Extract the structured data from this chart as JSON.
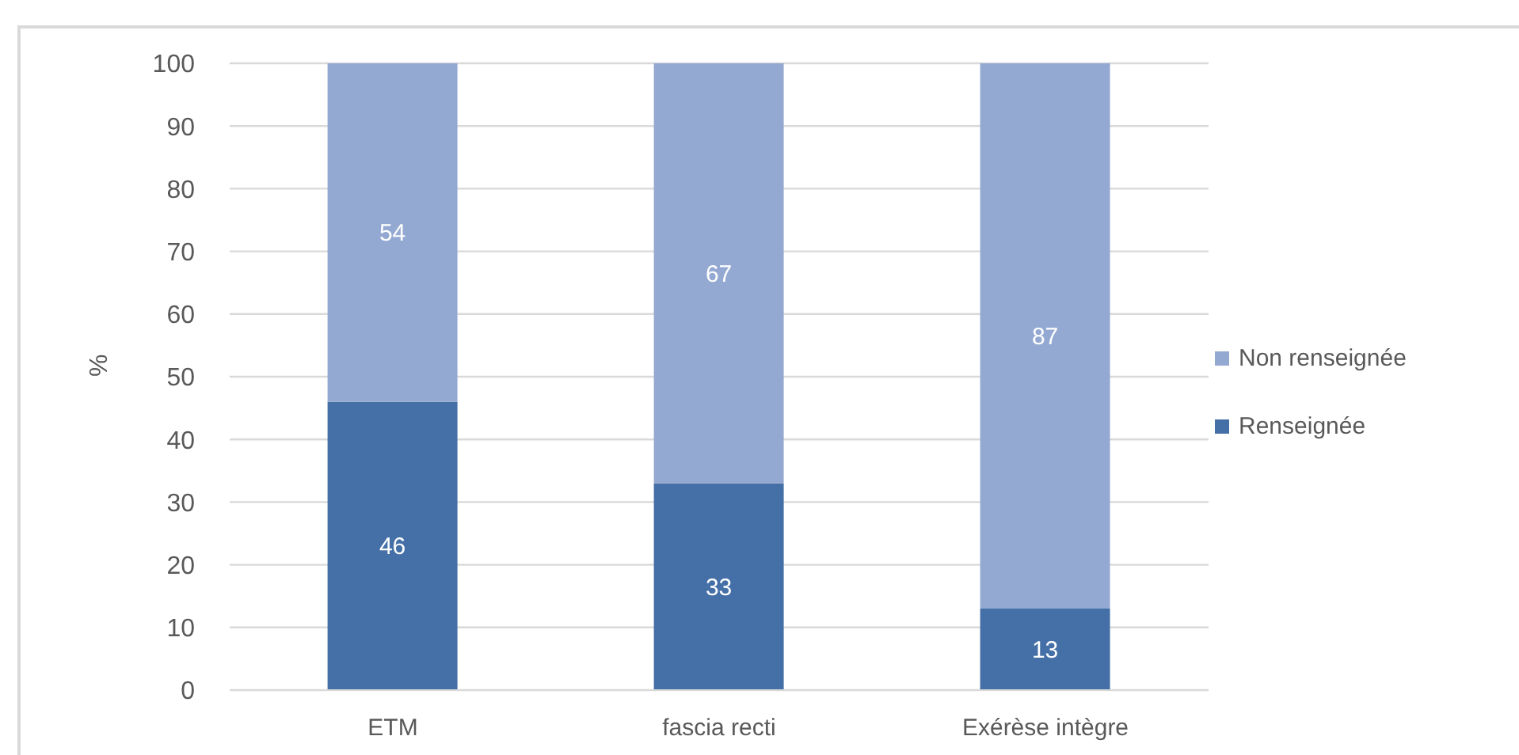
{
  "chart_data": {
    "type": "bar",
    "ylabel": "%",
    "categories": [
      "ETM",
      "fascia recti",
      "Exérèse intègre"
    ],
    "series": [
      {
        "name": "Renseignée",
        "color": "#4570a7",
        "values": [
          46,
          33,
          13
        ]
      },
      {
        "name": "Non renseignée",
        "color": "#94a9d2",
        "values": [
          54,
          67,
          87
        ]
      }
    ],
    "stacked": true,
    "ylim": [
      0,
      100
    ],
    "yticks": [
      0,
      10,
      20,
      30,
      40,
      50,
      60,
      70,
      80,
      90,
      100
    ],
    "grid": "y",
    "legend": "right",
    "data_labels": true
  }
}
